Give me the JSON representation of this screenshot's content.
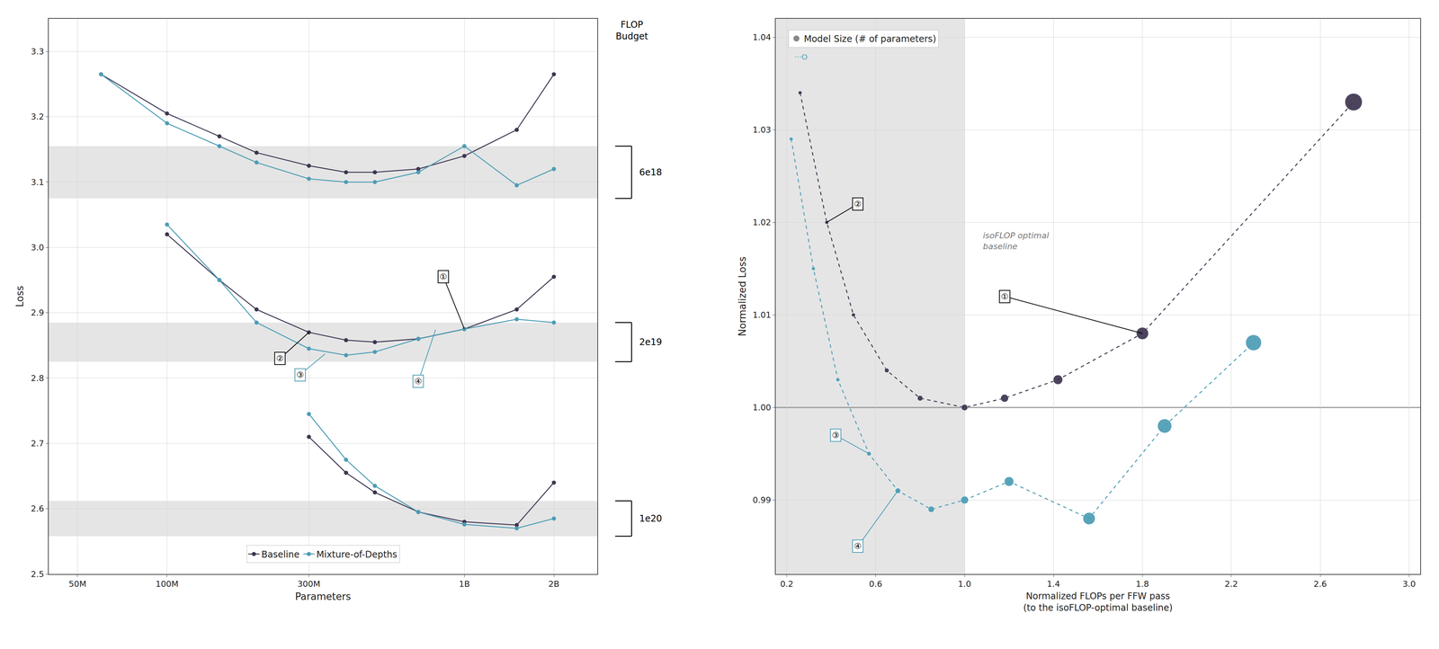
{
  "chart_data": [
    {
      "type": "line",
      "log": "x",
      "grid": true,
      "legend": "lower center",
      "xlabel": "Parameters",
      "ylabel": "Loss",
      "xlim": [
        40000000,
        2800000000
      ],
      "xticks": [
        {
          "value": 50000000,
          "label": "50M"
        },
        {
          "value": 100000000,
          "label": "100M"
        },
        {
          "value": 300000000,
          "label": "300M"
        },
        {
          "value": 1000000000,
          "label": "1B"
        },
        {
          "value": 2000000000,
          "label": "2B"
        }
      ],
      "ylim": [
        2.5,
        3.35
      ],
      "yticks": [
        2.5,
        2.6,
        2.7,
        2.8,
        2.9,
        {
          "value": 3.0,
          "label": "3.0"
        },
        3.1,
        3.2,
        3.3
      ],
      "series": [
        {
          "name": "Baseline",
          "color": "#3d3550",
          "marker": "circle",
          "line_style": "solid",
          "x": [
            60000000,
            100000000,
            150000000,
            200000000,
            300000000,
            400000000,
            500000000,
            700000000,
            1000000000,
            1500000000,
            2000000000
          ],
          "values": [
            3.265,
            3.205,
            3.17,
            3.145,
            3.125,
            3.115,
            3.115,
            3.12,
            3.14,
            3.18,
            3.265
          ]
        },
        {
          "name": "Mixture-of-Depths",
          "color": "#4b9db5",
          "marker": "circle",
          "line_style": "solid",
          "x": [
            60000000,
            100000000,
            150000000,
            200000000,
            300000000,
            400000000,
            500000000,
            700000000,
            1000000000,
            1500000000,
            2000000000
          ],
          "values": [
            3.265,
            3.19,
            3.155,
            3.13,
            3.105,
            3.1,
            3.1,
            3.115,
            3.155,
            3.095,
            3.12
          ]
        },
        {
          "name": "Baseline",
          "color": "#3d3550",
          "marker": "circle",
          "line_style": "solid",
          "x": [
            100000000,
            150000000,
            200000000,
            300000000,
            400000000,
            500000000,
            700000000,
            1000000000,
            1500000000,
            2000000000
          ],
          "values": [
            3.02,
            2.95,
            2.905,
            2.87,
            2.858,
            2.855,
            2.86,
            2.875,
            2.905,
            2.955
          ]
        },
        {
          "name": "Mixture-of-Depths",
          "color": "#4b9db5",
          "marker": "circle",
          "line_style": "solid",
          "x": [
            100000000,
            150000000,
            200000000,
            300000000,
            400000000,
            500000000,
            700000000,
            1000000000,
            1500000000,
            2000000000
          ],
          "values": [
            3.035,
            2.95,
            2.885,
            2.845,
            2.835,
            2.84,
            2.86,
            2.875,
            2.89,
            2.885
          ]
        },
        {
          "name": "Baseline",
          "color": "#3d3550",
          "marker": "circle",
          "line_style": "solid",
          "x": [
            300000000,
            400000000,
            500000000,
            700000000,
            1000000000,
            1500000000,
            2000000000
          ],
          "values": [
            2.71,
            2.655,
            2.625,
            2.595,
            2.58,
            2.575,
            2.64
          ]
        },
        {
          "name": "Mixture-of-Depths",
          "color": "#4b9db5",
          "marker": "circle",
          "line_style": "solid",
          "x": [
            300000000,
            400000000,
            500000000,
            700000000,
            1000000000,
            1500000000,
            2000000000
          ],
          "values": [
            2.745,
            2.675,
            2.635,
            2.595,
            2.576,
            2.57,
            2.585
          ]
        }
      ],
      "flop_budgets": {
        "title": "FLOP\nBudget",
        "color": "#e5e5e5",
        "items": [
          {
            "label": "6e18",
            "center": 3.115,
            "range": [
              3.075,
              3.155
            ]
          },
          {
            "label": "2e19",
            "center": 2.855,
            "range": [
              2.825,
              2.885
            ]
          },
          {
            "label": "1e20",
            "center": 2.585,
            "range": [
              2.558,
              2.612
            ]
          }
        ]
      },
      "annotations": [
        {
          "text": "①",
          "x": 1000000000,
          "y": 2.875,
          "text_x": 850000000,
          "text_y": 2.955,
          "color": "#000000"
        },
        {
          "text": "②",
          "x": 300000000,
          "y": 2.87,
          "text_x": 240000000,
          "text_y": 2.83,
          "color": "#000000"
        },
        {
          "text": "③",
          "x": 340000000,
          "y": 2.837,
          "text_x": 280000000,
          "text_y": 2.805,
          "color": "#4b9db5"
        },
        {
          "text": "④",
          "x": 800000000,
          "y": 2.874,
          "text_x": 700000000,
          "text_y": 2.795,
          "color": "#4b9db5"
        }
      ]
    },
    {
      "type": "line",
      "grid": true,
      "legend": "upper left",
      "xlabel": "Normalized FLOPs per FFW pass\n(to the isoFLOP-optimal baseline)",
      "ylabel": "Normalized Loss",
      "xlim": [
        0.15,
        3.05
      ],
      "xticks": [
        0.2,
        0.6,
        {
          "value": 1.0,
          "label": "1.0"
        },
        1.4,
        1.8,
        2.2,
        2.6,
        {
          "value": 3.0,
          "label": "3.0"
        }
      ],
      "ylim": [
        0.982,
        1.042
      ],
      "yticks": [
        0.99,
        {
          "value": 1.0,
          "label": "1.00"
        },
        1.01,
        1.02,
        1.03,
        1.04
      ],
      "series": [
        {
          "color": "#3d3550",
          "marker": "circle",
          "line_style": "dashed",
          "x": [
            0.26,
            0.38,
            0.5,
            0.65,
            0.8,
            1.0,
            1.18,
            1.42,
            1.8,
            2.75
          ],
          "values": [
            1.034,
            1.02,
            1.01,
            1.004,
            1.001,
            1.0,
            1.001,
            1.003,
            1.008,
            1.033
          ],
          "sizes": [
            60,
            100,
            150,
            200,
            300,
            400,
            600,
            900,
            1500,
            3000
          ]
        },
        {
          "color": "#4b9db5",
          "marker": "circle",
          "line_style": "dashed",
          "x": [
            0.22,
            0.32,
            0.43,
            0.57,
            0.7,
            0.85,
            1.0,
            1.2,
            1.56,
            1.9,
            2.3
          ],
          "values": [
            1.029,
            1.015,
            1.003,
            0.995,
            0.991,
            0.989,
            0.99,
            0.992,
            0.988,
            0.998,
            1.007
          ],
          "sizes": [
            60,
            100,
            150,
            200,
            300,
            400,
            600,
            900,
            1500,
            2000,
            2500
          ]
        }
      ],
      "shaded_x": {
        "range": [
          0.15,
          1.0
        ],
        "color": "#e5e5e5"
      },
      "reference_line": {
        "y": 1.0,
        "color": "#555555"
      },
      "size_legend": {
        "name": "Model Size (# of parameters)",
        "color": "#888888",
        "marker": "circle",
        "symbol_text": {
          "text": "···O",
          "color": "#4b9db5"
        }
      },
      "annotations": [
        {
          "text": "①",
          "x": 1.8,
          "y": 1.008,
          "text_x": 1.18,
          "text_y": 1.012,
          "color": "#000000"
        },
        {
          "text": "②",
          "x": 0.38,
          "y": 1.02,
          "text_x": 0.52,
          "text_y": 1.022,
          "color": "#000000"
        },
        {
          "text": "③",
          "x": 0.57,
          "y": 0.995,
          "text_x": 0.42,
          "text_y": 0.997,
          "color": "#4b9db5"
        },
        {
          "text": "④",
          "x": 0.7,
          "y": 0.991,
          "text_x": 0.52,
          "text_y": 0.985,
          "color": "#4b9db5"
        },
        {
          "text": "isoFLOP optimal\nbaseline",
          "text_x": 1.08,
          "text_y": 1.018,
          "color": "#777777"
        }
      ]
    }
  ]
}
